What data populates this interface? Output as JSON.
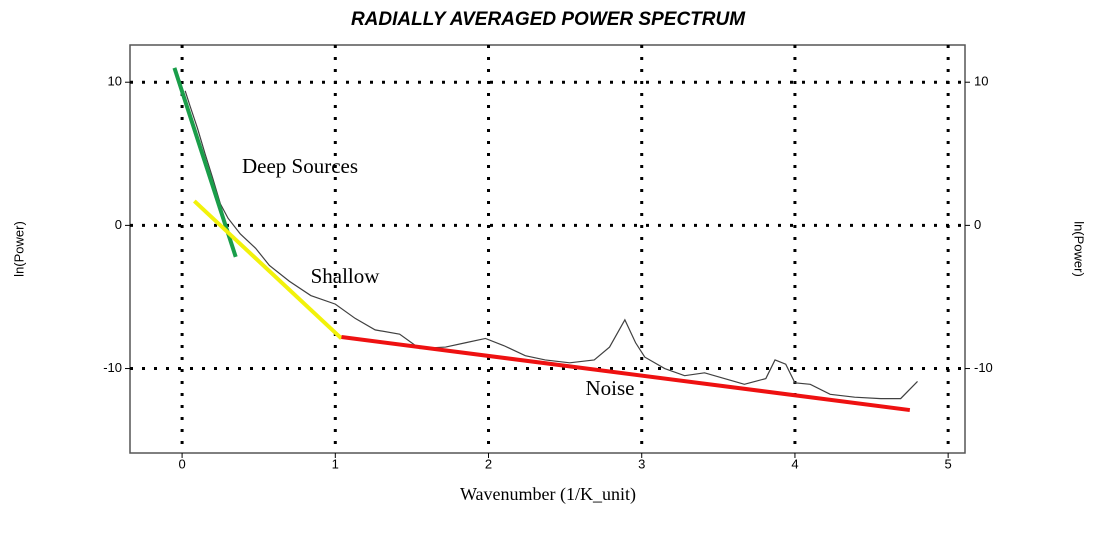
{
  "chart_data": {
    "type": "line",
    "title": "RADIALLY AVERAGED POWER SPECTRUM",
    "xlabel": "Wavenumber (1/K_unit)",
    "ylabel": "ln(Power)",
    "y2label": "ln(Power)",
    "x": [
      0.02,
      0.05,
      0.1,
      0.15,
      0.2,
      0.25,
      0.3,
      0.38,
      0.48,
      0.57,
      0.7,
      0.84,
      1.0,
      1.13,
      1.26,
      1.42,
      1.55,
      1.72,
      1.85,
      1.98,
      2.1,
      2.24,
      2.37,
      2.53,
      2.69,
      2.79,
      2.89,
      2.96,
      3.02,
      3.15,
      3.28,
      3.41,
      3.54,
      3.67,
      3.81,
      3.87,
      3.94,
      4.0,
      4.1,
      4.23,
      4.39,
      4.56,
      4.69,
      4.8
    ],
    "values": [
      9.4,
      8.4,
      6.8,
      5.0,
      3.3,
      1.5,
      0.5,
      -0.6,
      -1.6,
      -2.8,
      -3.9,
      -4.9,
      -5.5,
      -6.5,
      -7.3,
      -7.6,
      -8.6,
      -8.5,
      -8.2,
      -7.9,
      -8.4,
      -9.1,
      -9.4,
      -9.6,
      -9.4,
      -8.5,
      -6.6,
      -8.2,
      -9.2,
      -10.0,
      -10.5,
      -10.3,
      -10.7,
      -11.1,
      -10.7,
      -9.4,
      -9.7,
      -11.0,
      -11.1,
      -11.8,
      -12.0,
      -12.1,
      -12.1,
      -10.9
    ],
    "color": "#404040",
    "fits": [
      {
        "color": "#1a9e4a",
        "x": [
          -0.05,
          0.35
        ],
        "values": [
          11.0,
          -2.2
        ]
      },
      {
        "color": "#f2f20a",
        "x": [
          0.08,
          1.04
        ],
        "values": [
          1.7,
          -7.9
        ]
      },
      {
        "color": "#ee1111",
        "x": [
          1.04,
          4.75
        ],
        "values": [
          -7.8,
          -12.9
        ]
      }
    ],
    "annotations": [
      "Deep Sources",
      "Shallow",
      "Noise"
    ],
    "xlim": [
      -0.34,
      5.11
    ],
    "ylim": [
      -15.9,
      12.6
    ],
    "y2lim": [
      -15.9,
      12.6
    ],
    "xticks": [
      0,
      1,
      2,
      3,
      4,
      5
    ],
    "yticks": [
      -10,
      0,
      10
    ],
    "y2ticks": [
      -10,
      0,
      10
    ],
    "grid": true
  }
}
